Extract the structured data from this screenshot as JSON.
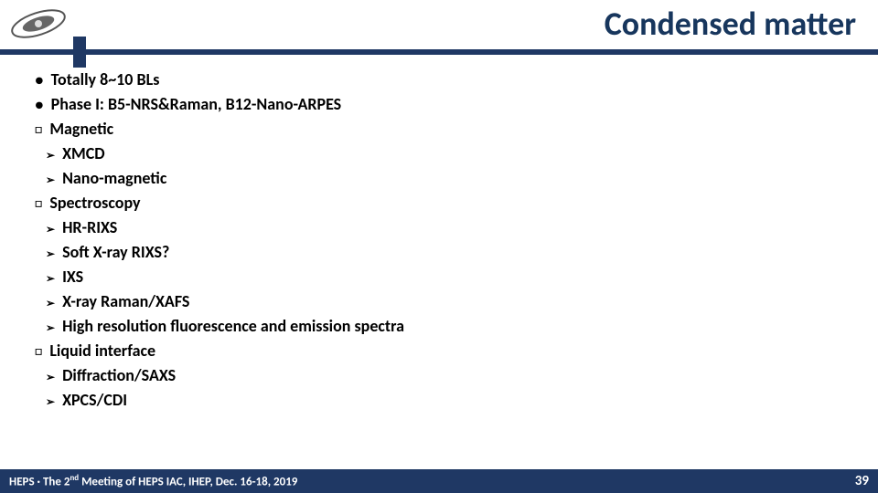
{
  "title": "Condensed matter",
  "colors": {
    "accent": "#1f3864",
    "title": "#17365d",
    "text": "#000000",
    "footer_bg": "#1f3864",
    "footer_text": "#ffffff",
    "bg": "#ffffff"
  },
  "logo": {
    "name": "galaxy-logo"
  },
  "bullets": [
    {
      "marker": "dot",
      "text": "Totally 8~10 BLs"
    },
    {
      "marker": "dot",
      "text": "Phase I: B5-NRS&Raman, B12-Nano-ARPES"
    },
    {
      "marker": "square",
      "text": "Magnetic"
    },
    {
      "marker": "arrow",
      "text": "XMCD"
    },
    {
      "marker": "arrow",
      "text": "Nano-magnetic"
    },
    {
      "marker": "square",
      "text": "Spectroscopy"
    },
    {
      "marker": "arrow",
      "text": "HR-RIXS"
    },
    {
      "marker": "arrow",
      "text": "Soft X-ray RIXS?"
    },
    {
      "marker": "arrow",
      "text": "IXS"
    },
    {
      "marker": "arrow",
      "text": "X-ray Raman/XAFS"
    },
    {
      "marker": "arrow",
      "text": "High resolution fluorescence and emission spectra"
    },
    {
      "marker": "square",
      "text": "Liquid interface"
    },
    {
      "marker": "arrow",
      "text": "Diffraction/SAXS"
    },
    {
      "marker": "arrow",
      "text": "XPCS/CDI"
    }
  ],
  "footer": {
    "prefix": "HEPS · The 2",
    "sup": "nd",
    "suffix": " Meeting of HEPS IAC, IHEP, Dec. 16-18, 2019",
    "page": "39"
  }
}
